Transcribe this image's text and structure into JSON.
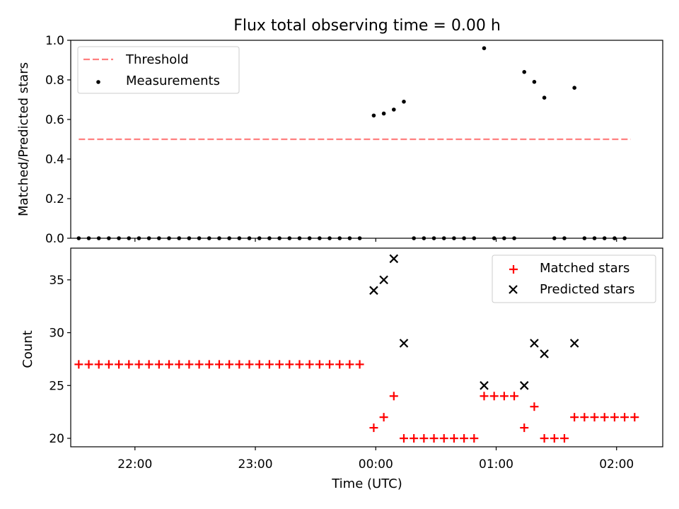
{
  "chart_data": [
    {
      "type": "scatter",
      "title": "Flux total observing time = 0.00 h",
      "xlabel": "",
      "ylabel": "Matched/Predicted stars",
      "xlim": [
        "21:28",
        "02:23"
      ],
      "ylim": [
        0,
        1.0
      ],
      "xticks": [
        "22:00",
        "23:00",
        "00:00",
        "01:00",
        "02:00"
      ],
      "xticklabels_visible": false,
      "yticks": [
        "0.0",
        "0.2",
        "0.4",
        "0.6",
        "0.8",
        "1.0"
      ],
      "grid": false,
      "legend": {
        "placement": "top-left",
        "entries": [
          "Threshold",
          "Measurements"
        ]
      },
      "threshold": {
        "name": "Threshold",
        "y": 0.5,
        "x_start": "21:32",
        "x_end": "02:07",
        "color": "#ff7f7f",
        "style": "dashed"
      },
      "series": [
        {
          "name": "Measurements",
          "color": "#000000",
          "marker": "dot",
          "points": [
            [
              "21:32",
              0
            ],
            [
              "21:37",
              0
            ],
            [
              "21:42",
              0
            ],
            [
              "21:47",
              0
            ],
            [
              "21:52",
              0
            ],
            [
              "21:57",
              0
            ],
            [
              "22:02",
              0
            ],
            [
              "22:07",
              0
            ],
            [
              "22:12",
              0
            ],
            [
              "22:17",
              0
            ],
            [
              "22:22",
              0
            ],
            [
              "22:27",
              0
            ],
            [
              "22:32",
              0
            ],
            [
              "22:37",
              0
            ],
            [
              "22:42",
              0
            ],
            [
              "22:47",
              0
            ],
            [
              "22:52",
              0
            ],
            [
              "22:57",
              0
            ],
            [
              "23:02",
              0
            ],
            [
              "23:07",
              0
            ],
            [
              "23:12",
              0
            ],
            [
              "23:17",
              0
            ],
            [
              "23:22",
              0
            ],
            [
              "23:27",
              0
            ],
            [
              "23:32",
              0
            ],
            [
              "23:37",
              0
            ],
            [
              "23:42",
              0
            ],
            [
              "23:47",
              0
            ],
            [
              "23:52",
              0
            ],
            [
              "23:59",
              0.62
            ],
            [
              "00:04",
              0.63
            ],
            [
              "00:09",
              0.65
            ],
            [
              "00:14",
              0.69
            ],
            [
              "00:19",
              0
            ],
            [
              "00:24",
              0
            ],
            [
              "00:29",
              0
            ],
            [
              "00:34",
              0
            ],
            [
              "00:39",
              0
            ],
            [
              "00:44",
              0
            ],
            [
              "00:49",
              0
            ],
            [
              "00:54",
              0.96
            ],
            [
              "00:59",
              0
            ],
            [
              "01:04",
              0
            ],
            [
              "01:09",
              0
            ],
            [
              "01:14",
              0.84
            ],
            [
              "01:19",
              0.79
            ],
            [
              "01:24",
              0.71
            ],
            [
              "01:29",
              0
            ],
            [
              "01:34",
              0
            ],
            [
              "01:39",
              0.76
            ],
            [
              "01:44",
              0
            ],
            [
              "01:49",
              0
            ],
            [
              "01:54",
              0
            ],
            [
              "01:59",
              0
            ],
            [
              "02:04",
              0
            ]
          ]
        }
      ]
    },
    {
      "type": "scatter",
      "title": "",
      "xlabel": "Time (UTC)",
      "ylabel": "Count",
      "xlim": [
        "21:28",
        "02:23"
      ],
      "ylim": [
        19.2,
        38.0
      ],
      "xticks": [
        "22:00",
        "23:00",
        "00:00",
        "01:00",
        "02:00"
      ],
      "yticks": [
        "20",
        "25",
        "30",
        "35"
      ],
      "grid": false,
      "legend": {
        "placement": "top-right",
        "entries": [
          "Matched stars",
          "Predicted stars"
        ]
      },
      "series": [
        {
          "name": "Matched stars",
          "color": "#ff0000",
          "marker": "plus",
          "points": [
            [
              "21:32",
              27
            ],
            [
              "21:37",
              27
            ],
            [
              "21:42",
              27
            ],
            [
              "21:47",
              27
            ],
            [
              "21:52",
              27
            ],
            [
              "21:57",
              27
            ],
            [
              "22:02",
              27
            ],
            [
              "22:07",
              27
            ],
            [
              "22:12",
              27
            ],
            [
              "22:17",
              27
            ],
            [
              "22:22",
              27
            ],
            [
              "22:27",
              27
            ],
            [
              "22:32",
              27
            ],
            [
              "22:37",
              27
            ],
            [
              "22:42",
              27
            ],
            [
              "22:47",
              27
            ],
            [
              "22:52",
              27
            ],
            [
              "22:57",
              27
            ],
            [
              "23:02",
              27
            ],
            [
              "23:07",
              27
            ],
            [
              "23:12",
              27
            ],
            [
              "23:17",
              27
            ],
            [
              "23:22",
              27
            ],
            [
              "23:27",
              27
            ],
            [
              "23:32",
              27
            ],
            [
              "23:37",
              27
            ],
            [
              "23:42",
              27
            ],
            [
              "23:47",
              27
            ],
            [
              "23:52",
              27
            ],
            [
              "23:59",
              21
            ],
            [
              "00:04",
              22
            ],
            [
              "00:09",
              24
            ],
            [
              "00:14",
              20
            ],
            [
              "00:19",
              20
            ],
            [
              "00:24",
              20
            ],
            [
              "00:29",
              20
            ],
            [
              "00:34",
              20
            ],
            [
              "00:39",
              20
            ],
            [
              "00:44",
              20
            ],
            [
              "00:49",
              20
            ],
            [
              "00:54",
              24
            ],
            [
              "00:59",
              24
            ],
            [
              "01:04",
              24
            ],
            [
              "01:09",
              24
            ],
            [
              "01:14",
              21
            ],
            [
              "01:19",
              23
            ],
            [
              "01:24",
              20
            ],
            [
              "01:29",
              20
            ],
            [
              "01:34",
              20
            ],
            [
              "01:39",
              22
            ],
            [
              "01:44",
              22
            ],
            [
              "01:49",
              22
            ],
            [
              "01:54",
              22
            ],
            [
              "01:59",
              22
            ],
            [
              "02:04",
              22
            ],
            [
              "02:09",
              22
            ]
          ]
        },
        {
          "name": "Predicted stars",
          "color": "#000000",
          "marker": "cross",
          "points": [
            [
              "23:59",
              34
            ],
            [
              "00:04",
              35
            ],
            [
              "00:09",
              37
            ],
            [
              "00:14",
              29
            ],
            [
              "00:54",
              25
            ],
            [
              "01:14",
              25
            ],
            [
              "01:19",
              29
            ],
            [
              "01:24",
              28
            ],
            [
              "01:39",
              29
            ]
          ]
        }
      ]
    }
  ]
}
